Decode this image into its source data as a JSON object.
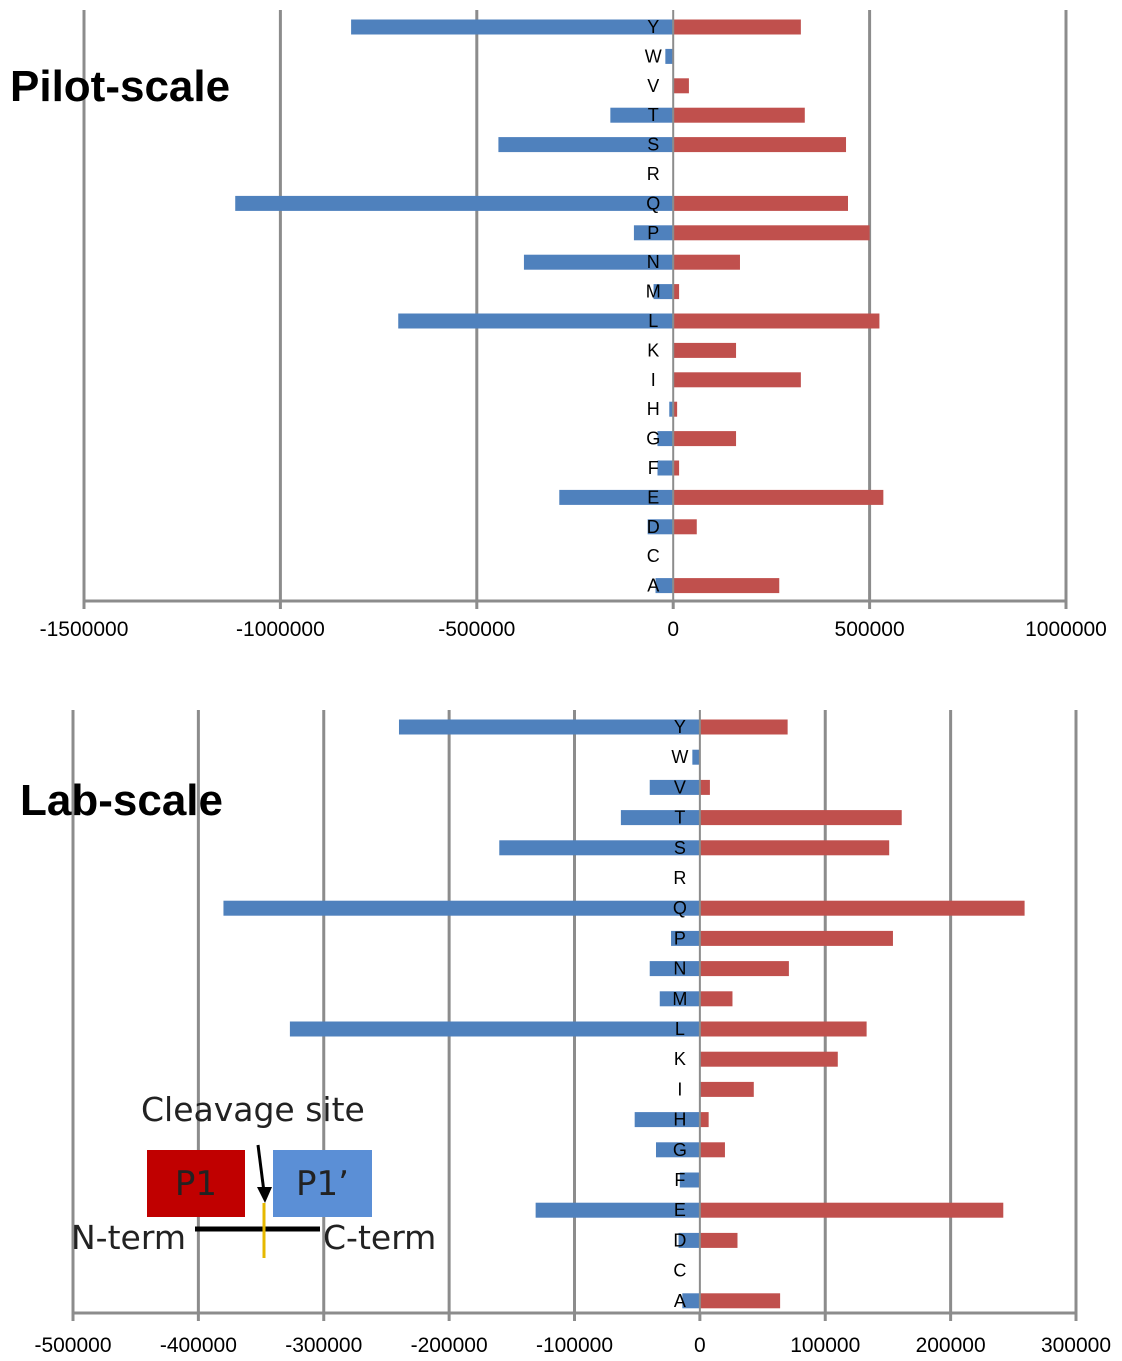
{
  "chart_data": [
    {
      "type": "bar",
      "orientation": "horizontal",
      "title": "Pilot-scale",
      "categories": [
        "Y",
        "W",
        "V",
        "T",
        "S",
        "R",
        "Q",
        "P",
        "N",
        "M",
        "L",
        "K",
        "I",
        "H",
        "G",
        "F",
        "E",
        "D",
        "C",
        "A"
      ],
      "xlim": [
        -1500000,
        1000000
      ],
      "xticks": [
        -1500000,
        -1000000,
        -500000,
        0,
        500000,
        1000000
      ],
      "xtick_labels": [
        "-1500000",
        "-1000000",
        "-500000",
        "0",
        "500000",
        "1000000"
      ],
      "grid": true,
      "series": [
        {
          "color": "#4f81bd",
          "values": [
            -820000,
            -20000,
            0,
            -160000,
            -445000,
            0,
            -1115000,
            -100000,
            -380000,
            -50000,
            -700000,
            0,
            0,
            -10000,
            -40000,
            -40000,
            -290000,
            -65000,
            0,
            -45000
          ]
        },
        {
          "color": "#c0504d",
          "values": [
            325000,
            0,
            40000,
            335000,
            440000,
            0,
            445000,
            500000,
            170000,
            15000,
            525000,
            160000,
            325000,
            10000,
            160000,
            15000,
            535000,
            60000,
            0,
            270000
          ]
        }
      ]
    },
    {
      "type": "bar",
      "orientation": "horizontal",
      "title": "Lab-scale",
      "categories": [
        "Y",
        "W",
        "V",
        "T",
        "S",
        "R",
        "Q",
        "P",
        "N",
        "M",
        "L",
        "K",
        "I",
        "H",
        "G",
        "F",
        "E",
        "D",
        "C",
        "A"
      ],
      "xlim": [
        -500000,
        300000
      ],
      "xticks": [
        -500000,
        -400000,
        -300000,
        -200000,
        -100000,
        0,
        100000,
        200000,
        300000
      ],
      "xtick_labels": [
        "-500000",
        "-400000",
        "-300000",
        "-200000",
        "-100000",
        "0",
        "100000",
        "200000",
        "300000"
      ],
      "grid": true,
      "series": [
        {
          "color": "#4f81bd",
          "values": [
            -240000,
            -6000,
            -40000,
            -63000,
            -160000,
            0,
            -380000,
            -23000,
            -40000,
            -32000,
            -327000,
            0,
            0,
            -52000,
            -35000,
            -16000,
            -131000,
            -17000,
            0,
            -14000
          ]
        },
        {
          "color": "#c0504d",
          "values": [
            70000,
            0,
            8000,
            161000,
            151000,
            0,
            259000,
            154000,
            71000,
            26000,
            133000,
            110000,
            43000,
            7000,
            20000,
            0,
            242000,
            30000,
            0,
            64000
          ]
        }
      ]
    }
  ],
  "diagram": {
    "cleavage_label": "Cleavage site",
    "p1_label": "P1",
    "p1_prime_label": "P1’",
    "n_term_label": "N-term",
    "c_term_label": "C-term",
    "p1_color": "#c00000",
    "p1_prime_color": "#5b8fd6",
    "cleavage_line_color": "#e6b800"
  }
}
